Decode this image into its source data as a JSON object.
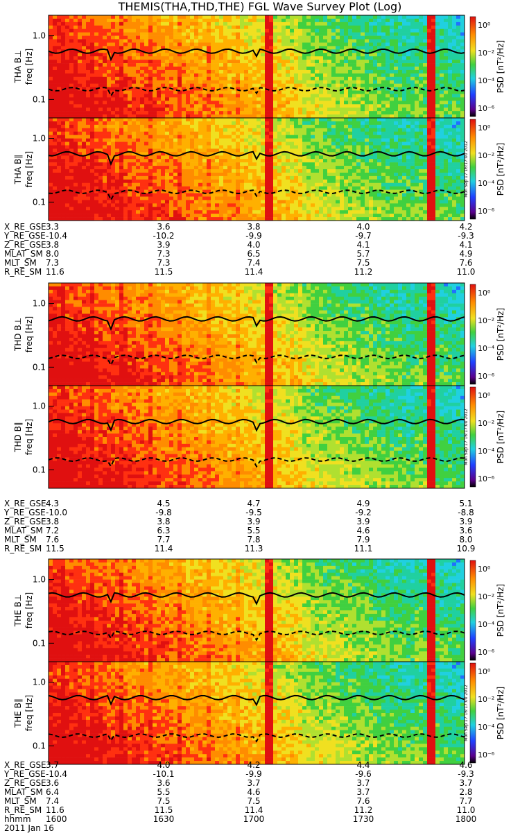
{
  "title": "THEMIS(THA,THD,THE) FGL Wave Survey Plot (Log)",
  "colorbar_label": "PSD [nT²/Hz]",
  "colorbar_ticks": [
    "10⁰",
    "10⁻²",
    "10⁻⁴",
    "10⁻⁶"
  ],
  "freq_ticks": [
    "1.0",
    "0.1"
  ],
  "freq_axis_label": "freq [Hz]",
  "stamp": "Mon Sep 17 16:17:00 2012",
  "colors": {
    "red": "#ff2000",
    "orange": "#ff8c00",
    "yellow": "#f0e020",
    "green": "#40d040",
    "cyan": "#20d0e0",
    "blue": "#2040ff",
    "black": "#000000"
  },
  "chart_data": [
    {
      "type": "heatmap",
      "probe": "THA",
      "component": "B⊥",
      "panel_label": "THA B⊥"
    },
    {
      "type": "heatmap",
      "probe": "THA",
      "component": "B∥",
      "panel_label": "THA B∥"
    },
    {
      "type": "heatmap",
      "probe": "THD",
      "component": "B⊥",
      "panel_label": "THD B⊥"
    },
    {
      "type": "heatmap",
      "probe": "THD",
      "component": "B∥",
      "panel_label": "THD B∥"
    },
    {
      "type": "heatmap",
      "probe": "THE",
      "component": "B⊥",
      "panel_label": "THE B⊥"
    },
    {
      "type": "heatmap",
      "probe": "THE",
      "component": "B∥",
      "panel_label": "THE B∥"
    }
  ],
  "ephemeris": [
    {
      "rows": [
        {
          "label": "X_RE_GSE",
          "values": [
            "3.3",
            "3.6",
            "3.8",
            "4.0",
            "4.2"
          ]
        },
        {
          "label": "Y_RE_GSE",
          "values": [
            "-10.4",
            "-10.2",
            "-9.9",
            "-9.7",
            "-9.3"
          ]
        },
        {
          "label": "Z_RE_GSE",
          "values": [
            "3.8",
            "3.9",
            "4.0",
            "4.1",
            "4.1"
          ]
        },
        {
          "label": "MLAT_SM",
          "values": [
            "8.0",
            "7.3",
            "6.5",
            "5.7",
            "4.9"
          ]
        },
        {
          "label": "MLT_SM",
          "values": [
            "7.3",
            "7.3",
            "7.4",
            "7.5",
            "7.6"
          ]
        },
        {
          "label": "R_RE_SM",
          "values": [
            "11.6",
            "11.5",
            "11.4",
            "11.2",
            "11.0"
          ]
        }
      ]
    },
    {
      "rows": [
        {
          "label": "X_RE_GSE",
          "values": [
            "4.3",
            "4.5",
            "4.7",
            "4.9",
            "5.1"
          ]
        },
        {
          "label": "Y_RE_GSE",
          "values": [
            "-10.0",
            "-9.8",
            "-9.5",
            "-9.2",
            "-8.8"
          ]
        },
        {
          "label": "Z_RE_GSE",
          "values": [
            "3.8",
            "3.8",
            "3.9",
            "3.9",
            "3.9"
          ]
        },
        {
          "label": "MLAT_SM",
          "values": [
            "7.2",
            "6.3",
            "5.5",
            "4.6",
            "3.6"
          ]
        },
        {
          "label": "MLT_SM",
          "values": [
            "7.6",
            "7.7",
            "7.8",
            "7.9",
            "8.0"
          ]
        },
        {
          "label": "R_RE_SM",
          "values": [
            "11.5",
            "11.4",
            "11.3",
            "11.1",
            "10.9"
          ]
        }
      ]
    },
    {
      "rows": [
        {
          "label": "X_RE_GSE",
          "values": [
            "3.7",
            "4.0",
            "4.2",
            "4.4",
            "4.6"
          ]
        },
        {
          "label": "Y_RE_GSE",
          "values": [
            "-10.4",
            "-10.1",
            "-9.9",
            "-9.6",
            "-9.3"
          ]
        },
        {
          "label": "Z_RE_GSE",
          "values": [
            "3.6",
            "3.6",
            "3.7",
            "3.7",
            "3.7"
          ]
        },
        {
          "label": "MLAT_SM",
          "values": [
            "6.4",
            "5.5",
            "4.6",
            "3.7",
            "2.8"
          ]
        },
        {
          "label": "MLT_SM",
          "values": [
            "7.4",
            "7.5",
            "7.5",
            "7.6",
            "7.7"
          ]
        },
        {
          "label": "R_RE_SM",
          "values": [
            "11.6",
            "11.5",
            "11.4",
            "11.2",
            "11.0"
          ]
        },
        {
          "label": "hhmm",
          "values": [
            "1600",
            "1630",
            "1700",
            "1730",
            "1800"
          ]
        }
      ]
    }
  ],
  "date_label": "2011 Jan 16"
}
